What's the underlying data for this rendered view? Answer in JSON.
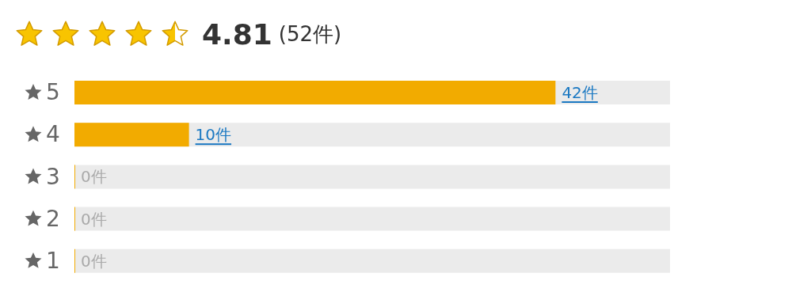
{
  "chart_data": {
    "type": "bar",
    "orientation": "horizontal",
    "title": "4.81",
    "subtitle": "(52件)",
    "categories": [
      "5",
      "4",
      "3",
      "2",
      "1"
    ],
    "series": [
      {
        "color": "#f2ab00",
        "values": [
          42,
          10,
          0,
          0,
          0
        ],
        "value_labels": [
          "42件",
          "10件",
          "0件",
          "0件",
          "0件"
        ]
      }
    ],
    "xlim": [
      0,
      52
    ],
    "tick_labels": "y"
  }
}
